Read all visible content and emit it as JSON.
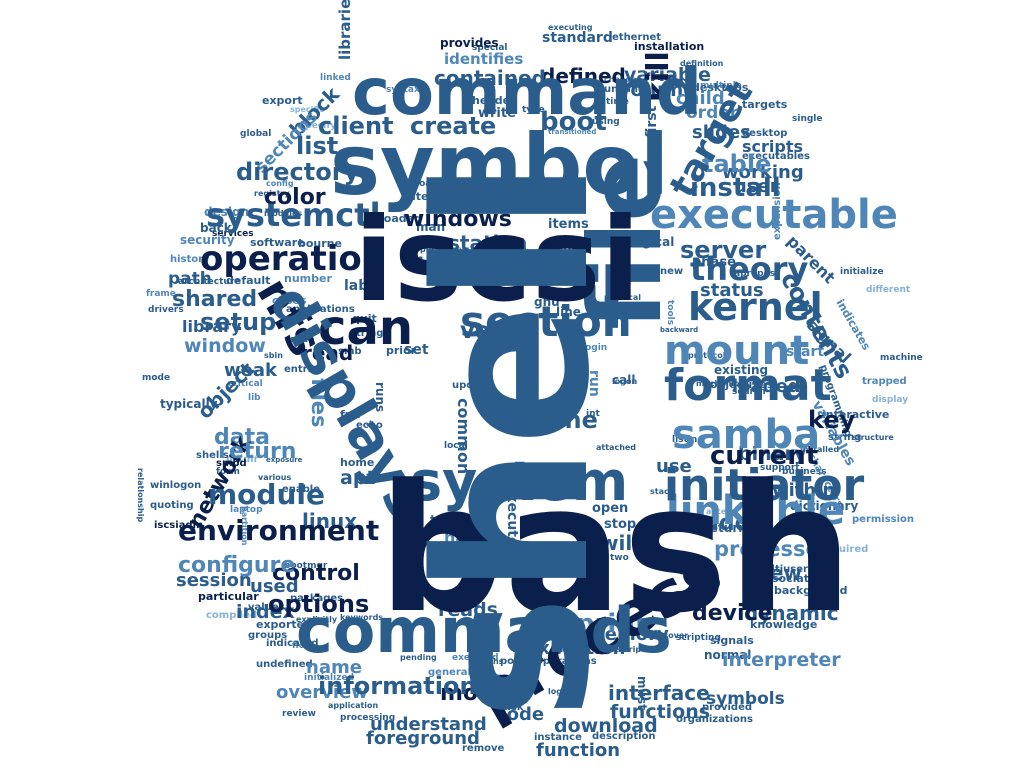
{
  "palette": {
    "navy": "#0b1f4d",
    "blue": "#2b5d8c",
    "steel": "#4f86b8",
    "light": "#86b2d6"
  },
  "words": {
    "shell": "shell",
    "bash": "bash",
    "iscsi": "iscsi",
    "symbol": "symbol",
    "file": "file",
    "command": "command",
    "commands": "commands",
    "process": "process",
    "displays": "displays",
    "system": "system",
    "initiator": "initiator",
    "format": "format",
    "samba": "samba",
    "section": "section",
    "can": "can",
    "nfs": "nfs",
    "executable": "executable",
    "linkable": "linkable",
    "mount": "mount",
    "kernel": "kernel",
    "target": "target",
    "operation": "operation",
    "theory": "theory",
    "environment": "environment",
    "systemctl": "systemctl",
    "module": "module",
    "directory": "directory",
    "client": "client",
    "create": "create",
    "boot": "boot",
    "kill": "kill",
    "list": "list",
    "install": "install",
    "table": "table",
    "windows": "windows",
    "color": "color",
    "server": "server",
    "value": "value",
    "setup": "setup",
    "shared": "shared",
    "contents": "contents",
    "current": "current",
    "return": "return",
    "network": "network",
    "data": "data",
    "files": "files",
    "linux": "linux",
    "control": "control",
    "configure": "configure",
    "options": "options",
    "information": "information",
    "model": "model",
    "print": "print",
    "device": "device",
    "processes": "processes",
    "view": "view",
    "add": "add",
    "dynamic": "dynamic",
    "interface": "interface",
    "functions": "functions",
    "download": "download",
    "understand": "understand",
    "function": "function",
    "foreground": "foreground",
    "code": "code",
    "name": "name",
    "overview": "overview",
    "index": "index",
    "used": "used",
    "session": "session",
    "window": "window",
    "library": "library",
    "path": "path",
    "read": "read",
    "weak": "weak",
    "object": "object",
    "apt": "apt",
    "one": "one",
    "common": "common",
    "hash": "hash",
    "execute": "execute",
    "will": "will",
    "execution": "execution",
    "memory": "memory",
    "reads": "reads",
    "interpreter": "interpreter",
    "symbols": "symbols",
    "key": "key",
    "loaded": "loaded",
    "within": "within",
    "binary": "binary",
    "use": "use",
    "status": "status",
    "parent": "parent",
    "signal": "signal",
    "user": "user",
    "working": "working",
    "scripts": "scripts",
    "slides": "slides",
    "order": "order",
    "child": "child",
    "volume": "volume",
    "variable": "variable",
    "defined": "defined",
    "contained": "contained",
    "libraries": "libraries",
    "identifies": "identifies",
    "standard": "standard",
    "station": "station",
    "block": "block",
    "sections": "sections",
    "write": "write",
    "export": "export",
    "header": "header",
    "provides": "provides",
    "ethernet": "ethernet",
    "installation": "installation",
    "desktops": "desktops",
    "targets": "targets",
    "associated": "associated",
    "background": "background",
    "knowledge": "knowledge",
    "signals": "signals",
    "normal": "normal",
    "must": "must",
    "call": "call",
    "start": "start",
    "existing": "existing",
    "objectives": "objectives",
    "via": "via",
    "set": "set",
    "lab": "lab",
    "run": "run",
    "open": "open",
    "stop": "stop",
    "returns": "returns",
    "dictionary": "dictionary",
    "processing": "processing",
    "variables": "variables",
    "points": "points",
    "operations": "operations",
    "entries": "entries",
    "echo": "echo",
    "home": "home",
    "enable": "enable",
    "strings": "strings",
    "applications": "applications",
    "cases": "cases",
    "software": "software",
    "bourne": "bourne",
    "security": "security",
    "design": "design",
    "back": "back",
    "item": "item",
    "items": "items",
    "utilities": "utilities",
    "allow": "allow",
    "logical": "logical",
    "alias": "alias",
    "small": "small",
    "man": "man",
    "number": "number",
    "default": "default",
    "architecture": "architecture",
    "history": "history",
    "typically": "typically",
    "shells": "shells",
    "packages": "packages",
    "values": "values",
    "compiled": "compiled",
    "groups": "groups",
    "exported": "exported",
    "indicated": "indicated",
    "undefined": "undefined",
    "initialized": "initialized",
    "general": "general",
    "remove": "remove",
    "description": "description",
    "organizations": "organizations",
    "provided": "provided",
    "multiuser": "multiuser",
    "required": "required",
    "permission": "permission",
    "characters": "characters",
    "string": "string",
    "programming": "programming",
    "trapped": "trapped",
    "initialize": "initialize",
    "interactive": "interactive",
    "desktop": "desktop",
    "expansion": "expansion",
    "executables": "executables",
    "single": "single",
    "definition": "definition",
    "force": "force",
    "unwind": "unwind",
    "change": "change",
    "time": "time",
    "type": "type",
    "upon": "upon",
    "line": "line",
    "first": "first",
    "loaded2": "loaded",
    "gnu": "gnu",
    "int": "int",
    "tgt": "tgt",
    "quit": "quit",
    "smb": "smb",
    "fdisk": "fdisk",
    "korn": "korn",
    "cifs": "cifs",
    "two": "two",
    "phase": "phase",
    "apropos": "apropos",
    "frame": "frame",
    "drivers": "drivers",
    "sudo": "sudo",
    "services": "services",
    "global": "global",
    "syntax": "syntax",
    "root": "root",
    "load": "load",
    "new": "new",
    "linked": "linked",
    "local": "local",
    "runs": "runs",
    "prior": "prior",
    "fun": "fun",
    "smbd": "smbd",
    "form": "form",
    "iscsiadm": "iscsiadm",
    "winlogon": "winlogon",
    "mode": "mode",
    "critical": "critical",
    "mechanics": "mechanics",
    "tools": "tools",
    "machine": "machine",
    "indicates": "indicates",
    "support": "support",
    "business": "business",
    "different": "different",
    "listing": "listing",
    "quoting": "quoting",
    "particular": "particular",
    "bootmgr": "bootmgr",
    "keywords": "keywords",
    "flow": "flow",
    "review": "review",
    "application": "application",
    "instance": "instance",
    "executed": "executed",
    "trap": "trap",
    "nfsd": "nfsd",
    "hardware": "hardware",
    "login": "login",
    "search": "search",
    "logon": "logon",
    "laptop": "laptop",
    "partition": "partition",
    "mkdir": "mkdir",
    "relationship": "relationship",
    "protocol": "protocol",
    "structure": "structure",
    "backward": "backward",
    "descriptors": "descriptors",
    "pending": "pending",
    "exposure": "exposure",
    "various": "various",
    "stabs": "stabs",
    "linker": "linker",
    "logic": "logic",
    "access": "access",
    "recover": "recover",
    "stack": "stack",
    "paths": "paths",
    "installed": "installed",
    "scripting": "scripting",
    "explicitly": "explicitly",
    "sector": "sector",
    "physical": "physical",
    "purposes": "purposes",
    "config": "config",
    "registry": "registry",
    "transitioned": "transitioned",
    "specify": "specify",
    "special": "special",
    "using": "using",
    "executing": "executing",
    "modules": "modules",
    "specific": "specific",
    "display": "display",
    "multiple": "multiple",
    "attached": "attached",
    "lib": "lib",
    "sbin": "sbin"
  }
}
